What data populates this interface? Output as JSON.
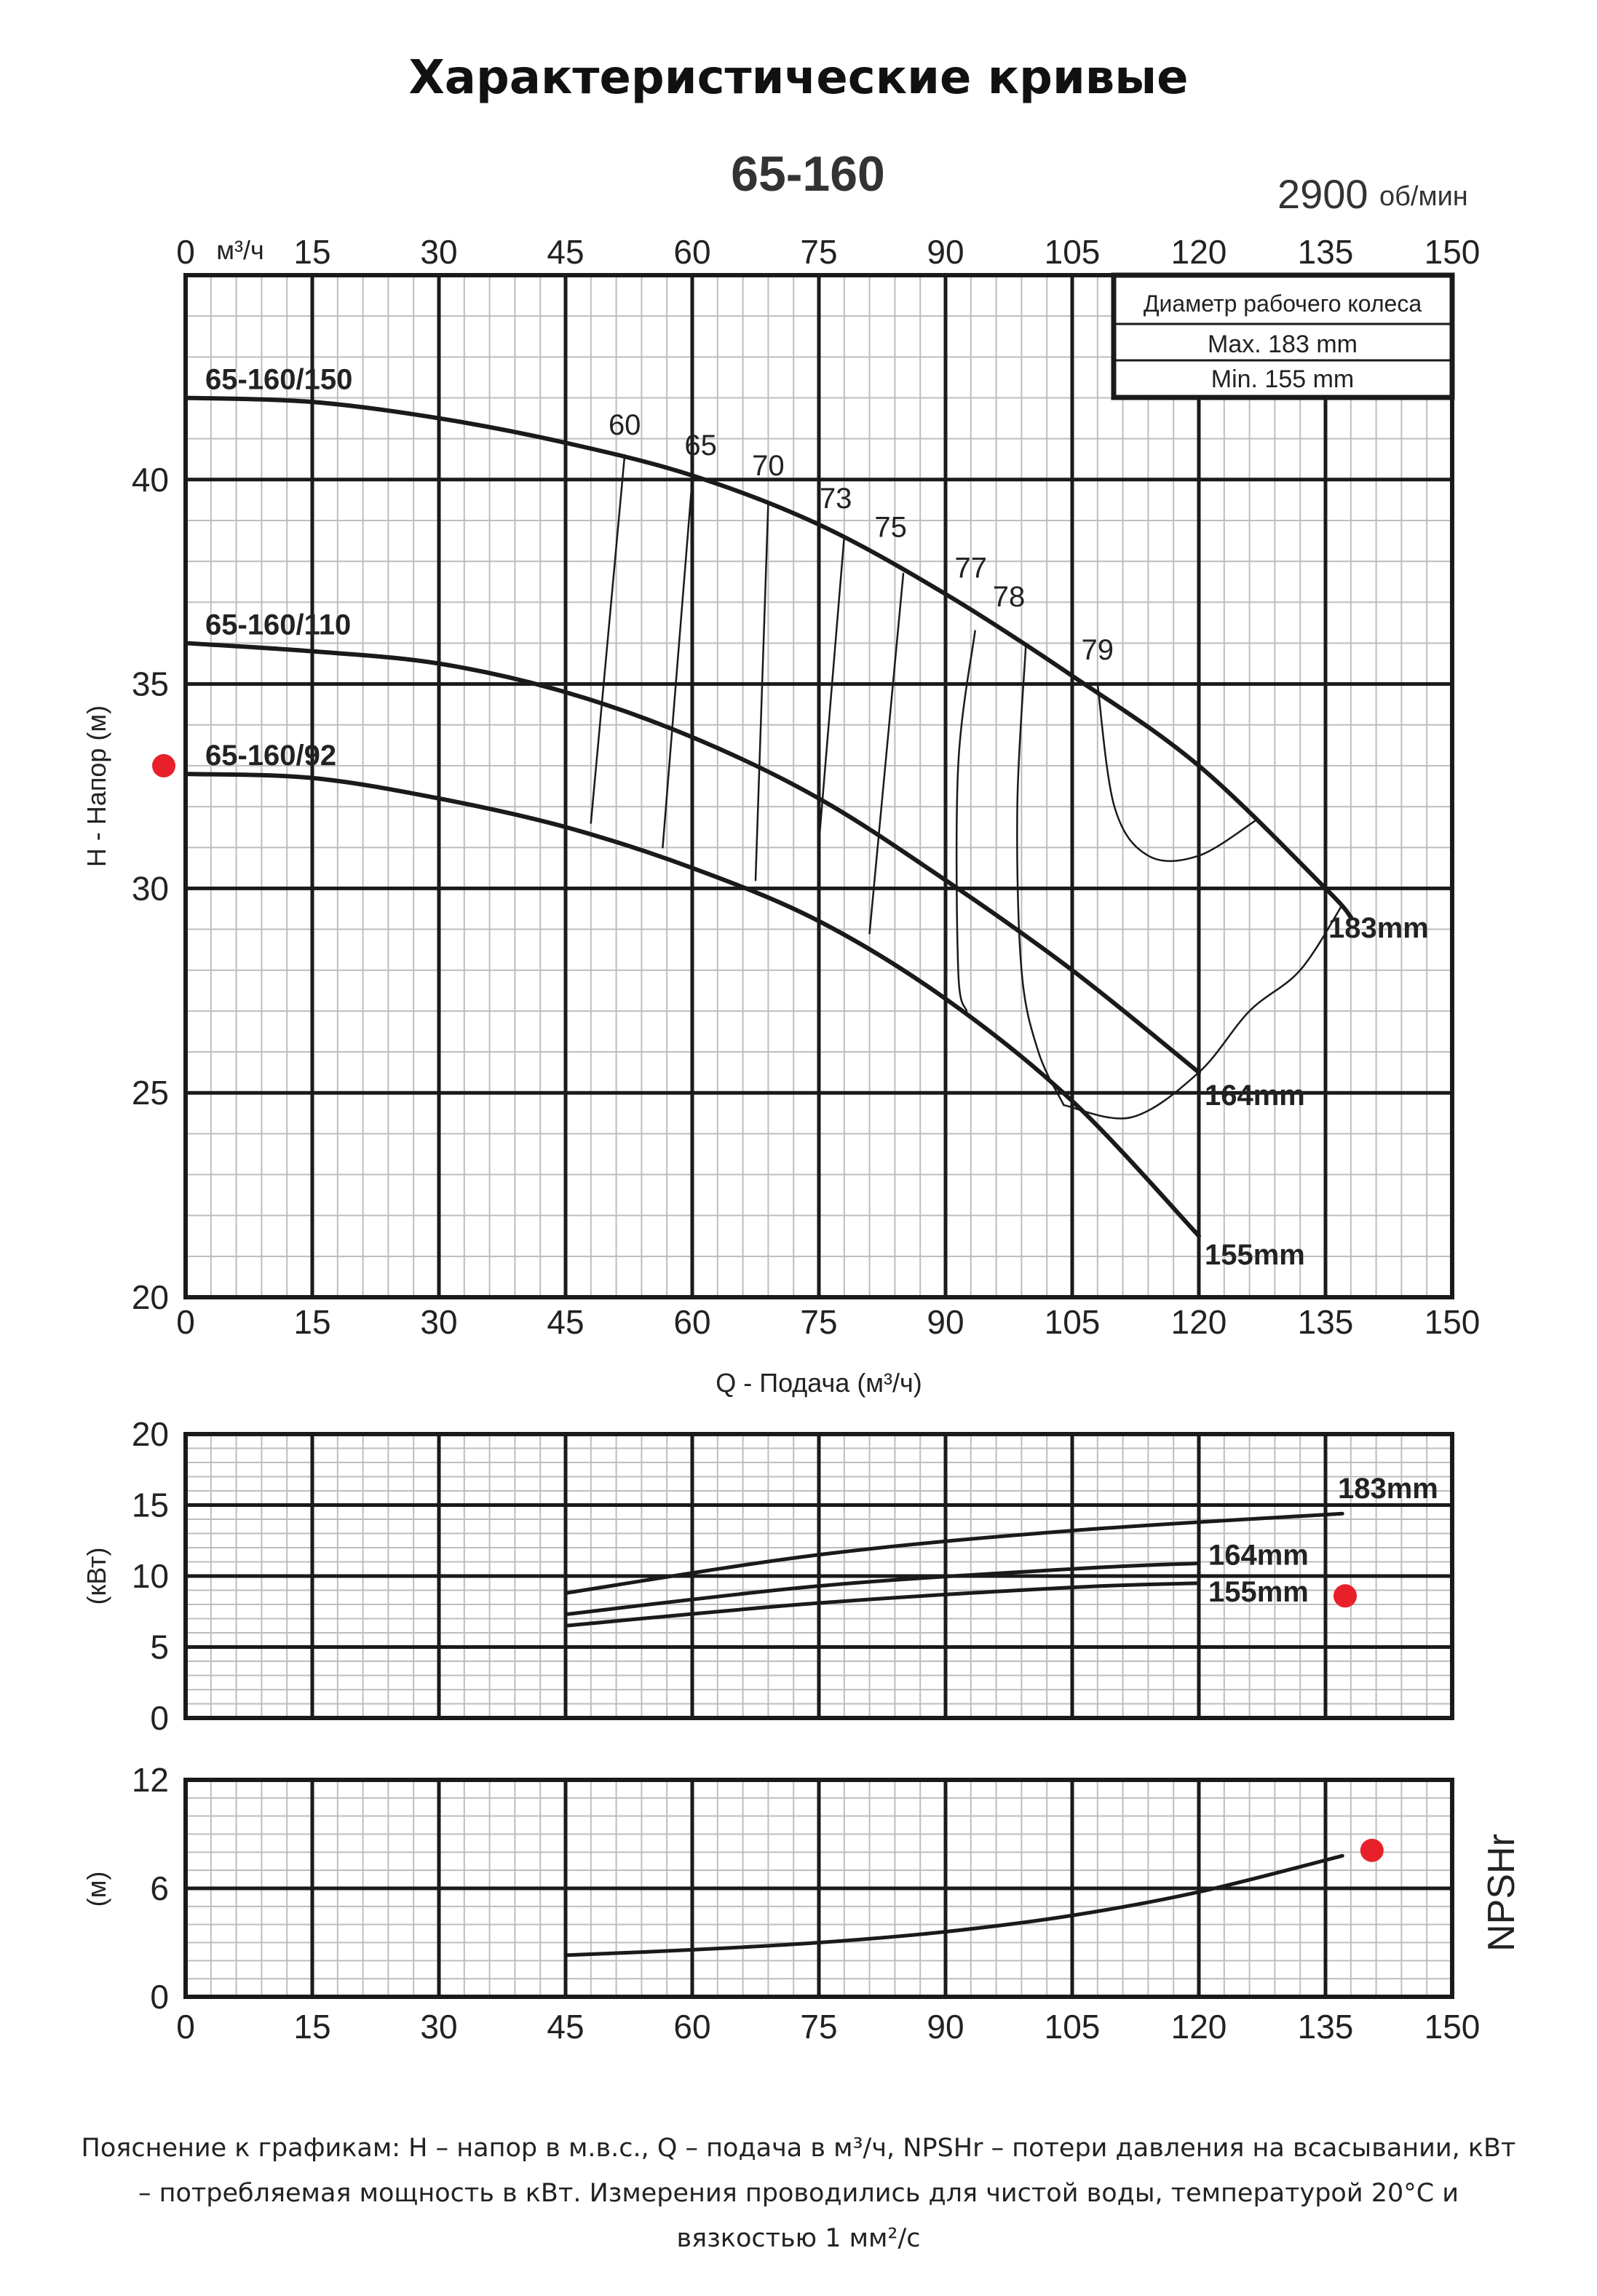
{
  "page": {
    "title": "Характеристические кривые",
    "footnote": "Пояснение к графикам: H – напор в м.в.с., Q – подача в м³/ч, NPSHr – потери давления на всасывании, кВт – потребляемая мощность в кВт. Измерения проводились для чистой воды, температурой 20°C и вязкостью 1 мм²/с"
  },
  "colors": {
    "line": "#1a1a1a",
    "grid_minor": "#bdbdbd",
    "marker": "#e8202a"
  },
  "chart_data": [
    {
      "id": "head",
      "type": "line",
      "title": "65-160",
      "speed_label": "2900",
      "speed_unit": "об/мин",
      "top_unit_label": "м³/ч",
      "xlabel": "Q - Подача (м³/ч)",
      "ylabel": "H - Напор (м)",
      "xlim": [
        0,
        150
      ],
      "ylim": [
        20,
        45
      ],
      "x_ticks": [
        0,
        15,
        30,
        45,
        60,
        75,
        90,
        105,
        120,
        135,
        150
      ],
      "y_ticks": [
        20,
        25,
        30,
        35,
        40
      ],
      "grid": true,
      "legend_box": {
        "heading": "Диаметр рабочего колеса",
        "rows": [
          "Max.   183  mm",
          "Min.    155  mm"
        ],
        "placement": "top-right"
      },
      "series": [
        {
          "name": "65-160/150",
          "end_label": "183mm",
          "x": [
            0,
            15,
            30,
            45,
            60,
            75,
            90,
            105,
            120,
            135,
            138
          ],
          "y": [
            42.0,
            41.9,
            41.5,
            40.9,
            40.1,
            38.9,
            37.2,
            35.2,
            33.0,
            30.0,
            29.3
          ]
        },
        {
          "name": "65-160/110",
          "end_label": "164mm",
          "x": [
            0,
            15,
            30,
            45,
            60,
            75,
            90,
            105,
            120
          ],
          "y": [
            36.0,
            35.8,
            35.5,
            34.8,
            33.7,
            32.2,
            30.2,
            28.0,
            25.5
          ]
        },
        {
          "name": "65-160/92",
          "end_label": "155mm",
          "x": [
            0,
            15,
            30,
            45,
            60,
            75,
            90,
            105,
            120
          ],
          "y": [
            32.8,
            32.7,
            32.2,
            31.5,
            30.5,
            29.2,
            27.3,
            24.8,
            21.5
          ]
        }
      ],
      "efficiency_labels": [
        "60",
        "65",
        "70",
        "73",
        "75",
        "77",
        "78",
        "79"
      ],
      "efficiency_lines": [
        {
          "x": [
            52,
            48
          ],
          "y": [
            40.6,
            31.6
          ]
        },
        {
          "x": [
            60,
            56.5
          ],
          "y": [
            40.0,
            31.0
          ]
        },
        {
          "x": [
            69,
            67.5
          ],
          "y": [
            39.4,
            30.2
          ]
        },
        {
          "x": [
            78,
            75
          ],
          "y": [
            38.6,
            31.1
          ]
        },
        {
          "x": [
            85,
            81
          ],
          "y": [
            37.7,
            28.9
          ]
        },
        {
          "x": [
            93.5,
            91.5,
            91.5,
            92.5
          ],
          "y": [
            36.3,
            33.0,
            28.0,
            27.0
          ]
        },
        {
          "x": [
            99.5,
            98.5,
            99,
            101,
            104
          ],
          "y": [
            35.9,
            32.0,
            28.0,
            26.0,
            24.7
          ]
        }
      ],
      "efficiency_loops": [
        {
          "x": [
            108,
            110,
            114,
            120,
            127
          ],
          "y": [
            35.0,
            32.0,
            30.8,
            30.8,
            31.7
          ]
        },
        {
          "x": [
            104,
            112,
            120,
            126,
            132,
            137
          ],
          "y": [
            24.7,
            24.4,
            25.5,
            27.0,
            28.0,
            29.6
          ]
        }
      ],
      "red_marker": {
        "x": -2.5,
        "y": 33.0
      }
    },
    {
      "id": "power",
      "type": "line",
      "ylabel": "(кВт)",
      "xlim": [
        0,
        150
      ],
      "ylim": [
        0,
        20
      ],
      "y_ticks": [
        0,
        5,
        10,
        15,
        20
      ],
      "series": [
        {
          "name": "183mm",
          "x": [
            45,
            75,
            105,
            137
          ],
          "y": [
            8.8,
            11.5,
            13.2,
            14.4
          ]
        },
        {
          "name": "164mm",
          "x": [
            45,
            75,
            105,
            120
          ],
          "y": [
            7.3,
            9.3,
            10.5,
            10.9
          ]
        },
        {
          "name": "155mm",
          "x": [
            45,
            75,
            105,
            120
          ],
          "y": [
            6.5,
            8.1,
            9.2,
            9.5
          ]
        }
      ],
      "red_marker": {
        "x": 137.5,
        "y": 8.6
      }
    },
    {
      "id": "npsh",
      "type": "line",
      "ylabel": "(м)",
      "side_label": "NPSHr",
      "xlim": [
        0,
        150
      ],
      "ylim": [
        0,
        12
      ],
      "x_ticks": [
        0,
        15,
        30,
        45,
        60,
        75,
        90,
        105,
        120,
        135,
        150
      ],
      "y_ticks": [
        0,
        6,
        12
      ],
      "series": [
        {
          "x": [
            45,
            60,
            75,
            90,
            105,
            120,
            137
          ],
          "y": [
            2.3,
            2.6,
            3.0,
            3.6,
            4.5,
            5.8,
            7.8
          ]
        }
      ],
      "red_marker": {
        "x": 140.5,
        "y": 8.1
      }
    }
  ]
}
